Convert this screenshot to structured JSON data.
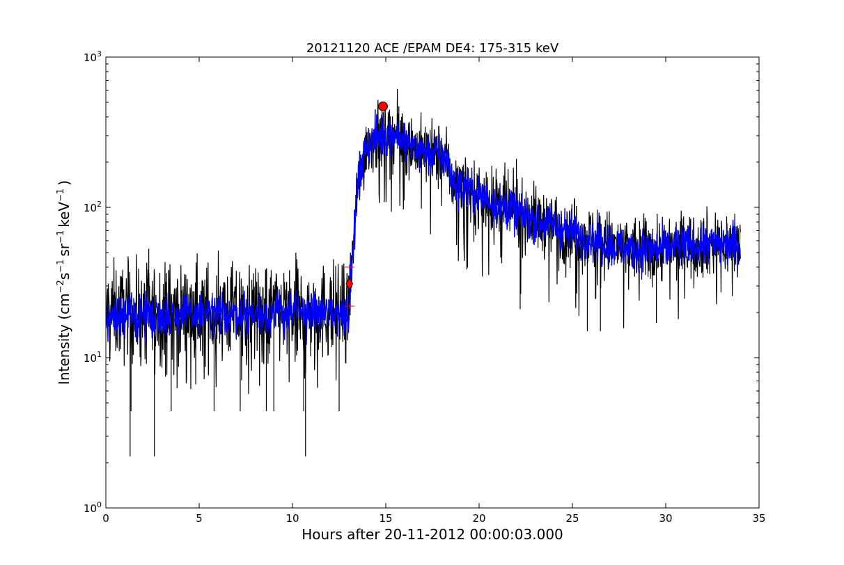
{
  "chart_data": {
    "type": "line",
    "title": "20121120 ACE /EPAM DE4: 175-315 keV",
    "xlabel": "Hours after 20-11-2012 00:00:03.000",
    "ylabel_parts": {
      "lead": "Intensity (cm",
      "exp1": "−2",
      "mid1": "s",
      "exp2": "−1",
      "mid2": "sr",
      "exp3": "−1",
      "mid3": "keV",
      "exp4": "−1",
      "tail": ")"
    },
    "xlim": [
      0,
      35
    ],
    "ylim": [
      1,
      1000
    ],
    "yscale": "log",
    "grid": false,
    "x_ticks": [
      0,
      5,
      10,
      15,
      20,
      25,
      30,
      35
    ],
    "x_tick_labels": [
      "0",
      "5",
      "10",
      "15",
      "20",
      "25",
      "30",
      "35"
    ],
    "y_ticks": [
      1,
      10,
      100,
      1000
    ],
    "y_tick_labels": [
      {
        "base": "10",
        "exp": "0"
      },
      {
        "base": "10",
        "exp": "1"
      },
      {
        "base": "10",
        "exp": "2"
      },
      {
        "base": "10",
        "exp": "3"
      }
    ],
    "series": [
      {
        "color": "#000000",
        "role": "raw intensity",
        "envelope": [
          {
            "x": 0.0,
            "y": 20
          },
          {
            "x": 13.0,
            "y": 20
          },
          {
            "x": 13.2,
            "y": 45
          },
          {
            "x": 13.5,
            "y": 140
          },
          {
            "x": 14.0,
            "y": 270
          },
          {
            "x": 14.8,
            "y": 300
          },
          {
            "x": 15.5,
            "y": 310
          },
          {
            "x": 16.5,
            "y": 250
          },
          {
            "x": 17.5,
            "y": 225
          },
          {
            "x": 18.3,
            "y": 210
          },
          {
            "x": 18.5,
            "y": 150
          },
          {
            "x": 20.0,
            "y": 120
          },
          {
            "x": 22.0,
            "y": 92
          },
          {
            "x": 24.0,
            "y": 75
          },
          {
            "x": 26.0,
            "y": 62
          },
          {
            "x": 28.0,
            "y": 52
          },
          {
            "x": 30.0,
            "y": 53
          },
          {
            "x": 32.0,
            "y": 57
          },
          {
            "x": 34.0,
            "y": 57
          }
        ],
        "spikes_down": [
          {
            "x": 1.3,
            "y": 2.2
          },
          {
            "x": 2.6,
            "y": 2.2
          },
          {
            "x": 10.7,
            "y": 2.2
          },
          {
            "x": 1.35,
            "y": 4.4
          },
          {
            "x": 3.5,
            "y": 4.4
          },
          {
            "x": 5.8,
            "y": 4.4
          },
          {
            "x": 7.2,
            "y": 4.4
          },
          {
            "x": 8.6,
            "y": 4.4
          },
          {
            "x": 9.0,
            "y": 4.4
          },
          {
            "x": 10.6,
            "y": 4.4
          },
          {
            "x": 12.5,
            "y": 4.4
          },
          {
            "x": 22.2,
            "y": 21
          },
          {
            "x": 25.8,
            "y": 15
          },
          {
            "x": 26.5,
            "y": 15
          },
          {
            "x": 29.5,
            "y": 17
          }
        ],
        "spikes_up": [
          {
            "x": 2.3,
            "y": 53
          },
          {
            "x": 14.8,
            "y": 470
          },
          {
            "x": 15.7,
            "y": 470
          },
          {
            "x": 22.0,
            "y": 210
          }
        ]
      },
      {
        "color": "#0000ff",
        "role": "smoothed intensity",
        "envelope": [
          {
            "x": 0.0,
            "y": 19
          },
          {
            "x": 13.0,
            "y": 20
          },
          {
            "x": 13.2,
            "y": 45
          },
          {
            "x": 13.5,
            "y": 140
          },
          {
            "x": 14.0,
            "y": 270
          },
          {
            "x": 14.8,
            "y": 300
          },
          {
            "x": 15.5,
            "y": 310
          },
          {
            "x": 16.5,
            "y": 250
          },
          {
            "x": 17.5,
            "y": 225
          },
          {
            "x": 18.3,
            "y": 210
          },
          {
            "x": 18.5,
            "y": 150
          },
          {
            "x": 20.0,
            "y": 120
          },
          {
            "x": 22.0,
            "y": 92
          },
          {
            "x": 24.0,
            "y": 75
          },
          {
            "x": 26.0,
            "y": 62
          },
          {
            "x": 28.0,
            "y": 52
          },
          {
            "x": 30.0,
            "y": 53
          },
          {
            "x": 32.0,
            "y": 57
          },
          {
            "x": 34.0,
            "y": 57
          }
        ]
      }
    ],
    "markers": [
      {
        "type": "circle",
        "color": "#ff0000",
        "x": 14.85,
        "y": 470,
        "role": "peak"
      },
      {
        "type": "diamond",
        "color": "#ff0000",
        "x": 13.05,
        "y": 31,
        "role": "onset"
      },
      {
        "type": "cross",
        "color": "#ff0000",
        "x": 13.05,
        "y": 40,
        "role": "onset-upper"
      },
      {
        "type": "cross",
        "color": "#ff0000",
        "x": 13.05,
        "y": 22,
        "role": "onset-lower"
      }
    ]
  }
}
